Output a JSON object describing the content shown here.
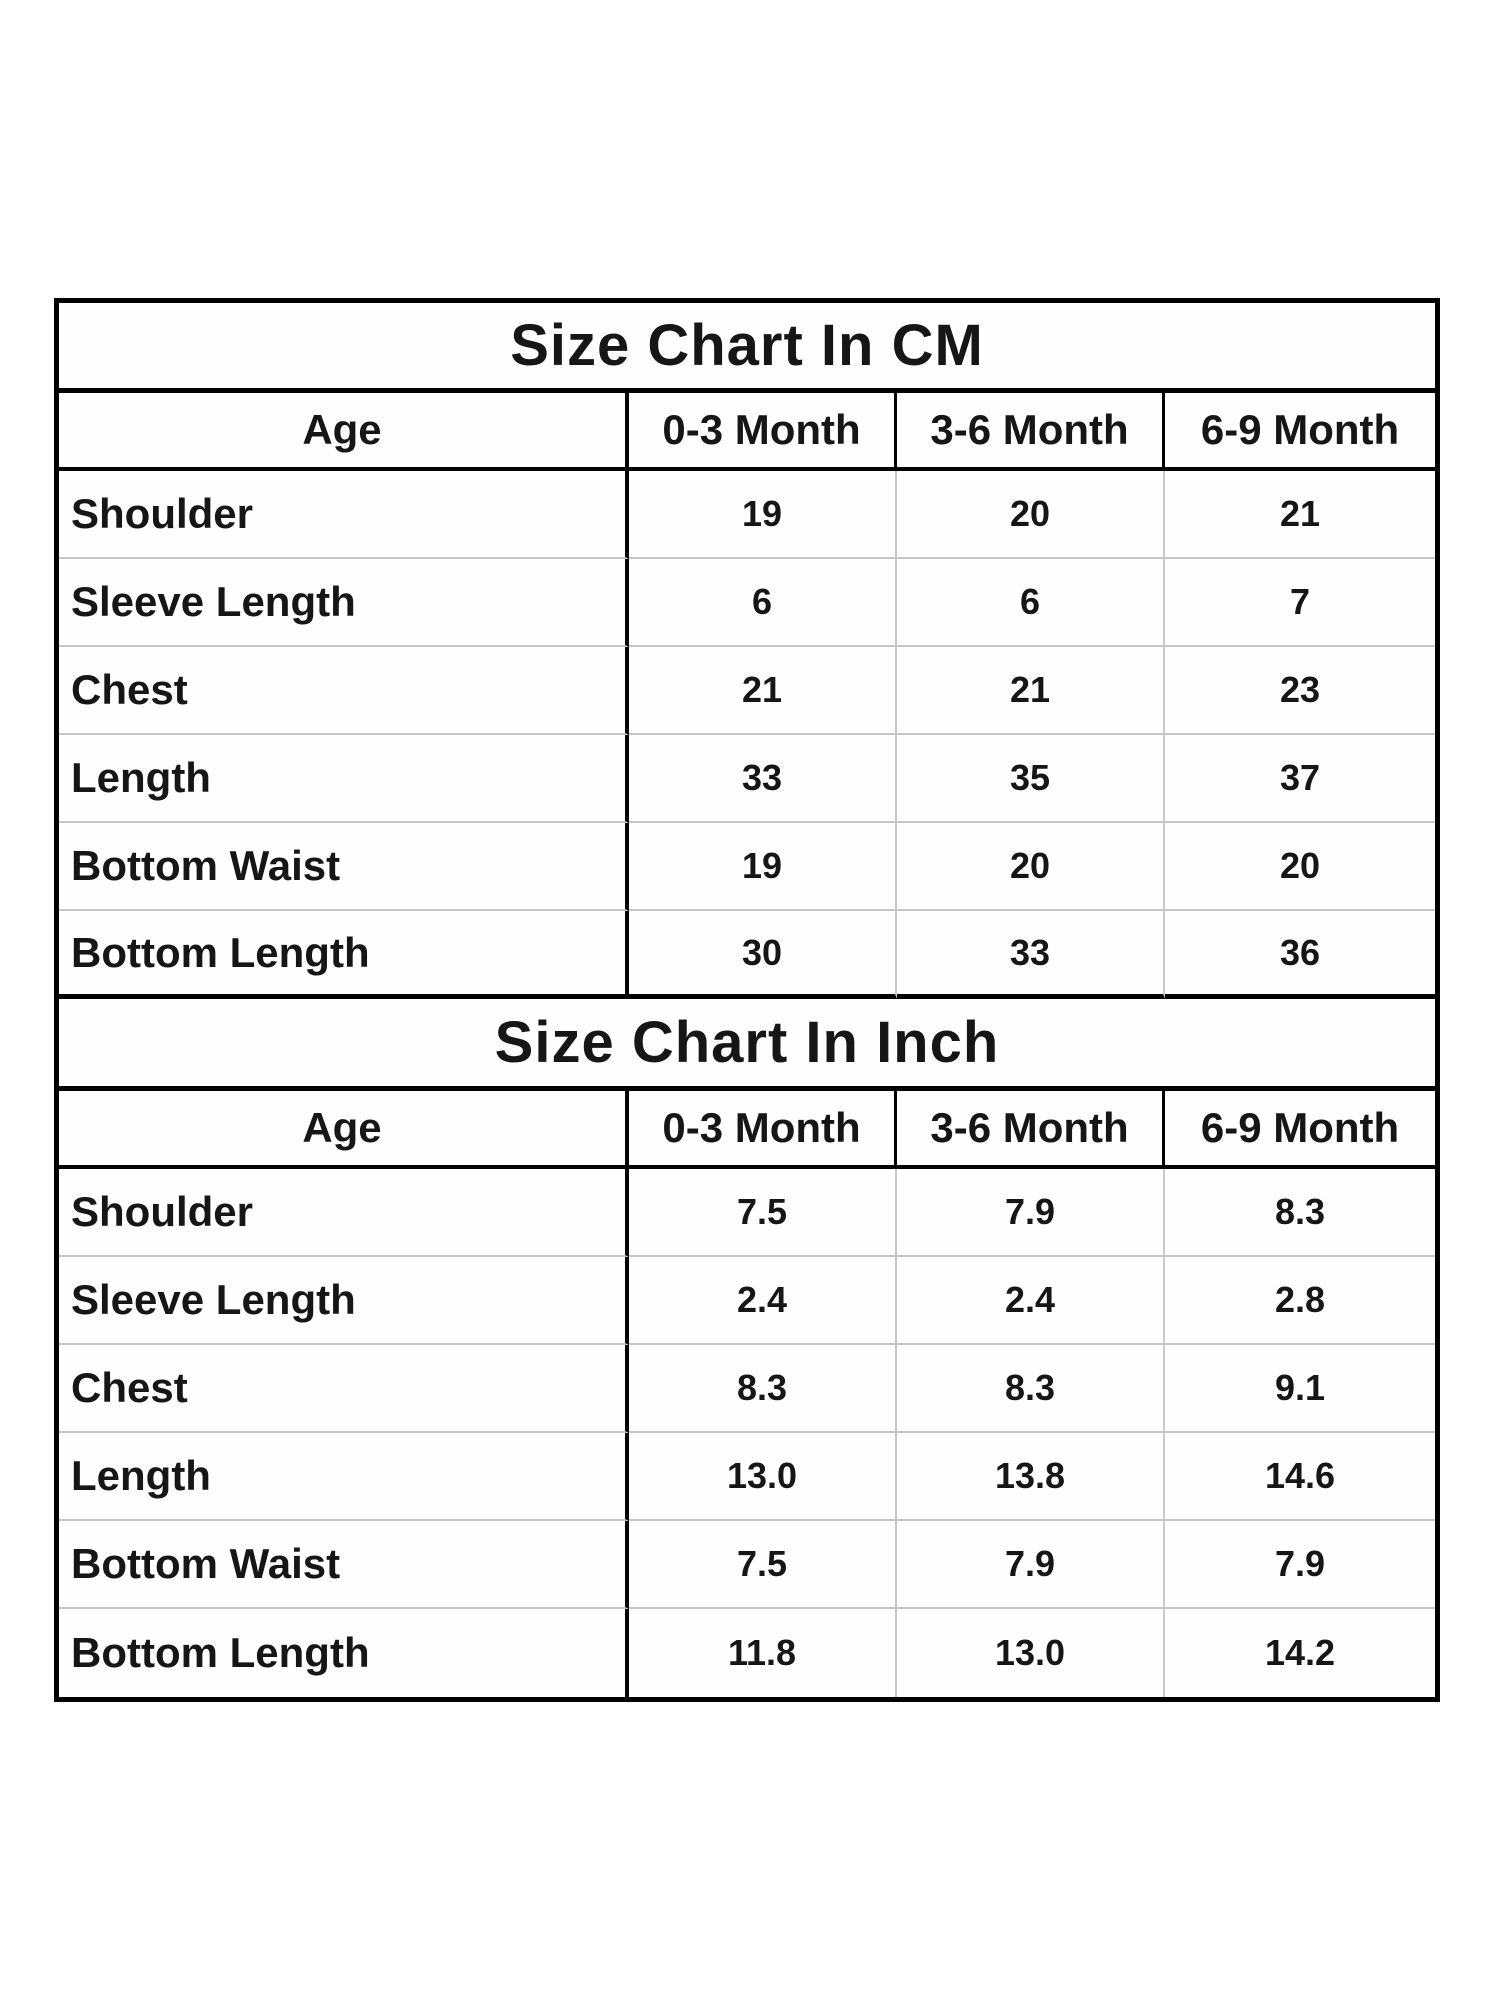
{
  "colors": {
    "background": "#ffffff",
    "text": "#161616",
    "border_strong": "#000000",
    "border_light": "#c6c6c6"
  },
  "chart_data": [
    {
      "type": "table",
      "title": "Size Chart In CM",
      "columns": [
        "Age",
        "0-3 Month",
        "3-6 Month",
        "6-9 Month"
      ],
      "rows": [
        {
          "label": "Shoulder",
          "values": [
            "19",
            "20",
            "21"
          ]
        },
        {
          "label": "Sleeve Length",
          "values": [
            "6",
            "6",
            "7"
          ]
        },
        {
          "label": "Chest",
          "values": [
            "21",
            "21",
            "23"
          ]
        },
        {
          "label": "Length",
          "values": [
            "33",
            "35",
            "37"
          ]
        },
        {
          "label": "Bottom Waist",
          "values": [
            "19",
            "20",
            "20"
          ]
        },
        {
          "label": "Bottom Length",
          "values": [
            "30",
            "33",
            "36"
          ]
        }
      ]
    },
    {
      "type": "table",
      "title": "Size Chart In Inch",
      "columns": [
        "Age",
        "0-3 Month",
        "3-6 Month",
        "6-9 Month"
      ],
      "rows": [
        {
          "label": "Shoulder",
          "values": [
            "7.5",
            "7.9",
            "8.3"
          ]
        },
        {
          "label": "Sleeve Length",
          "values": [
            "2.4",
            "2.4",
            "2.8"
          ]
        },
        {
          "label": "Chest",
          "values": [
            "8.3",
            "8.3",
            "9.1"
          ]
        },
        {
          "label": "Length",
          "values": [
            "13.0",
            "13.8",
            "14.6"
          ]
        },
        {
          "label": "Bottom Waist",
          "values": [
            "7.5",
            "7.9",
            "7.9"
          ]
        },
        {
          "label": "Bottom Length",
          "values": [
            "11.8",
            "13.0",
            "14.2"
          ]
        }
      ]
    }
  ]
}
